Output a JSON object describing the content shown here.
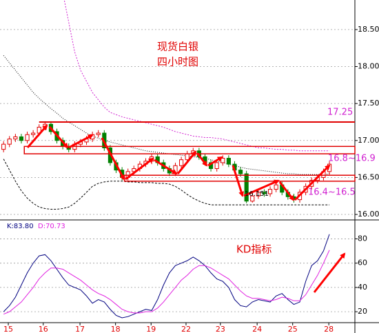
{
  "chart_data": [
    {
      "type": "candlestick",
      "title": "现货白银",
      "subtitle": "四小时图",
      "up_color": "#e00000",
      "down_color": "#008000",
      "xlim": [
        -0.6,
        59.3
      ],
      "ylim": [
        15.935,
        18.9
      ],
      "yticks": [
        {
          "value": 16.0,
          "label": "16.00"
        },
        {
          "value": 16.5,
          "label": "16.50"
        },
        {
          "value": 17.0,
          "label": "17.00"
        },
        {
          "value": 17.5,
          "label": "17.50"
        },
        {
          "value": 18.0,
          "label": "18.00"
        },
        {
          "value": 18.5,
          "label": "18.50"
        }
      ],
      "grid": true,
      "open": [
        16.88,
        16.95,
        17.02,
        17.05,
        17.0,
        17.08,
        17.1,
        17.18,
        17.22,
        17.12,
        17.0,
        16.92,
        16.88,
        16.95,
        16.98,
        17.02,
        17.08,
        17.1,
        16.9,
        16.7,
        16.6,
        16.5,
        16.58,
        16.62,
        16.68,
        16.72,
        16.78,
        16.7,
        16.62,
        16.56,
        16.66,
        16.74,
        16.82,
        16.86,
        16.78,
        16.7,
        16.62,
        16.7,
        16.76,
        16.68,
        16.6,
        16.55,
        16.18,
        16.25,
        16.3,
        16.28,
        16.34,
        16.4,
        16.3,
        16.24,
        16.2,
        16.3,
        16.38,
        16.46,
        16.5,
        16.58
      ],
      "high": [
        16.99,
        17.06,
        17.09,
        17.09,
        17.12,
        17.14,
        17.22,
        17.26,
        17.26,
        17.16,
        17.04,
        16.96,
        16.99,
        17.02,
        17.06,
        17.12,
        17.14,
        17.14,
        16.94,
        16.74,
        16.64,
        16.62,
        16.66,
        16.72,
        16.76,
        16.82,
        16.82,
        16.74,
        16.66,
        16.7,
        16.78,
        16.86,
        16.9,
        16.9,
        16.82,
        16.74,
        16.74,
        16.8,
        16.8,
        16.72,
        16.64,
        16.59,
        16.29,
        16.34,
        16.34,
        16.38,
        16.44,
        16.44,
        16.34,
        16.28,
        16.34,
        16.42,
        16.5,
        16.54,
        16.62,
        16.72
      ],
      "low": [
        16.84,
        16.91,
        16.98,
        16.96,
        16.96,
        17.04,
        17.06,
        17.14,
        17.08,
        16.96,
        16.88,
        16.84,
        16.84,
        16.91,
        16.94,
        16.98,
        17.04,
        16.86,
        16.66,
        16.56,
        16.46,
        16.46,
        16.54,
        16.58,
        16.64,
        16.68,
        16.66,
        16.58,
        16.52,
        16.52,
        16.62,
        16.7,
        16.78,
        16.74,
        16.66,
        16.58,
        16.58,
        16.66,
        16.64,
        16.56,
        16.51,
        16.151,
        16.16,
        16.21,
        16.24,
        16.24,
        16.3,
        16.26,
        16.2,
        16.16,
        16.16,
        16.26,
        16.34,
        16.42,
        16.46,
        16.54
      ],
      "close": [
        16.95,
        17.02,
        17.05,
        17.0,
        17.08,
        17.1,
        17.18,
        17.22,
        17.12,
        17.0,
        16.92,
        16.88,
        16.95,
        16.98,
        17.02,
        17.08,
        17.1,
        16.9,
        16.7,
        16.6,
        16.5,
        16.58,
        16.62,
        16.68,
        16.72,
        16.78,
        16.7,
        16.62,
        16.56,
        16.66,
        16.74,
        16.82,
        16.86,
        16.78,
        16.7,
        16.62,
        16.7,
        16.76,
        16.68,
        16.6,
        16.55,
        16.18,
        16.25,
        16.3,
        16.28,
        16.34,
        16.4,
        16.3,
        16.24,
        16.2,
        16.3,
        16.38,
        16.46,
        16.5,
        16.58,
        16.68
      ],
      "overlays": [
        {
          "color": "#d020d0",
          "dash": "2,2",
          "values": [
            null,
            null,
            null,
            null,
            null,
            null,
            null,
            null,
            null,
            null,
            19.0,
            18.6,
            18.2,
            17.95,
            17.8,
            17.65,
            17.55,
            17.45,
            17.38,
            17.35,
            17.32,
            17.3,
            17.28,
            17.26,
            17.24,
            17.22,
            17.2,
            17.18,
            17.15,
            17.12,
            17.1,
            17.08,
            17.06,
            17.05,
            17.04,
            17.04,
            17.03,
            17.02,
            17.0,
            16.98,
            16.96,
            16.94,
            16.92,
            16.9,
            16.9,
            16.89,
            16.88,
            16.88,
            16.87,
            16.87,
            16.86,
            16.86,
            16.86,
            16.86,
            16.86,
            16.86
          ]
        },
        {
          "color": "#000000",
          "dash": "1,2",
          "values": [
            18.15,
            18.05,
            17.95,
            17.85,
            17.75,
            17.65,
            17.57,
            17.5,
            17.43,
            17.37,
            17.3,
            17.25,
            17.2,
            17.15,
            17.1,
            17.06,
            17.03,
            17.0,
            16.98,
            16.96,
            16.94,
            16.92,
            16.9,
            16.88,
            16.86,
            16.85,
            16.84,
            16.83,
            16.82,
            16.81,
            16.8,
            16.79,
            16.78,
            16.77,
            16.76,
            16.74,
            16.72,
            16.7,
            16.68,
            16.66,
            16.64,
            16.62,
            16.61,
            16.6,
            16.59,
            16.58,
            16.57,
            16.56,
            16.55,
            16.55,
            16.54,
            16.54,
            16.54,
            16.54,
            16.54,
            16.55
          ]
        },
        {
          "color": "#000000",
          "dash": "3,2",
          "values": [
            16.75,
            16.6,
            16.45,
            16.32,
            16.22,
            16.15,
            16.1,
            16.08,
            16.07,
            16.07,
            16.08,
            16.1,
            16.15,
            16.22,
            16.3,
            16.38,
            16.42,
            16.44,
            16.45,
            16.45,
            16.45,
            16.44,
            16.44,
            16.43,
            16.43,
            16.43,
            16.42,
            16.42,
            16.41,
            16.38,
            16.33,
            16.27,
            16.22,
            16.18,
            16.15,
            16.13,
            16.13,
            16.13,
            16.13,
            16.13,
            16.13,
            16.13,
            16.13,
            16.13,
            16.13,
            16.13,
            16.13,
            16.13,
            16.13,
            16.13,
            16.13,
            16.13,
            16.13,
            16.13,
            16.13,
            16.13
          ]
        }
      ],
      "hlines": [
        {
          "value": 17.25,
          "start": 6.0
        }
      ],
      "zones": [
        {
          "low": 16.82,
          "high": 16.92,
          "start": 3.5
        },
        {
          "low": 16.45,
          "high": 16.53,
          "start": 20.4
        }
      ],
      "annotations": [
        "16.8~16.9",
        "16.4~16.5"
      ]
    },
    {
      "type": "line",
      "title": "KD指标",
      "xlim": [
        -0.6,
        59.3
      ],
      "ylim": [
        11,
        95
      ],
      "yticks": [
        20,
        40,
        60,
        80
      ],
      "grid": true,
      "xticks": [
        {
          "value": 0.8,
          "label": "15"
        },
        {
          "value": 6.7,
          "label": "16"
        },
        {
          "value": 12.9,
          "label": "17"
        },
        {
          "value": 18.9,
          "label": "18"
        },
        {
          "value": 24.9,
          "label": "19"
        },
        {
          "value": 30.8,
          "label": "22"
        },
        {
          "value": 36.6,
          "label": "23"
        },
        {
          "value": 42.8,
          "label": "24"
        },
        {
          "value": 48.8,
          "label": "25"
        },
        {
          "value": 54.9,
          "label": "28"
        }
      ],
      "series": [
        {
          "name": "K:83.80",
          "color": "#000080",
          "values": [
            20,
            25,
            32,
            42,
            52,
            60,
            66,
            67,
            62,
            55,
            48,
            42,
            40,
            38,
            33,
            27,
            30,
            28,
            22,
            17,
            15,
            16,
            18,
            20,
            22,
            21,
            30,
            42,
            52,
            58,
            60,
            62,
            65,
            62,
            58,
            52,
            47,
            45,
            40,
            30,
            25,
            24,
            28,
            30,
            29,
            28,
            33,
            35,
            30,
            26,
            28,
            45,
            58,
            62,
            70,
            83.8
          ]
        },
        {
          "name": "D:70.73",
          "color": "#e020e0",
          "values": [
            18,
            20,
            24,
            28,
            34,
            40,
            47,
            52,
            56,
            56,
            55,
            52,
            49,
            46,
            42,
            38,
            35,
            33,
            30,
            26,
            22,
            20,
            19,
            19,
            20,
            20,
            23,
            28,
            34,
            40,
            46,
            50,
            55,
            58,
            58,
            56,
            53,
            50,
            47,
            42,
            37,
            33,
            31,
            31,
            30,
            29,
            30,
            32,
            31,
            29,
            29,
            34,
            42,
            50,
            60,
            70.73
          ]
        }
      ]
    }
  ]
}
